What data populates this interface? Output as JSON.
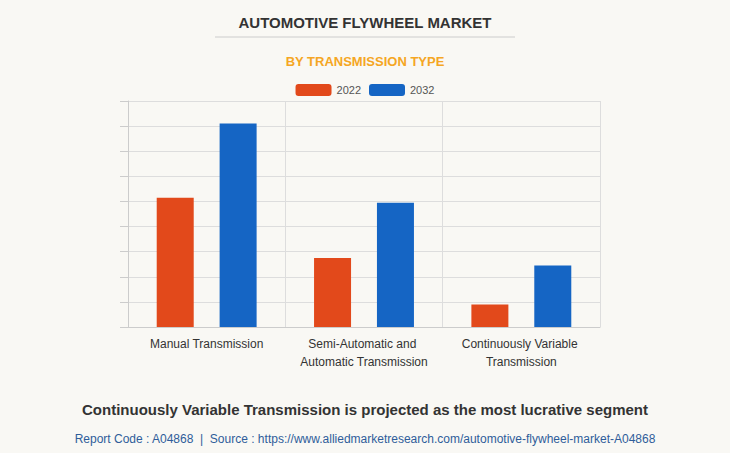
{
  "chart_data": {
    "type": "bar",
    "title": "AUTOMOTIVE FLYWHEEL MARKET",
    "subtitle": "BY TRANSMISSION TYPE",
    "annotations": [
      "Continuously Variable Transmission is projected as the most lucrative segment",
      "Report Code : A04868  |  Source : https://www.alliedmarketresearch.com/automotive-flywheel-market-A04868"
    ],
    "categories": [
      "Manual Transmission",
      "Semi-Automatic and Automatic Transmission",
      "Continuously Variable Transmission"
    ],
    "series": [
      {
        "name": "2022",
        "color": "#e2491b",
        "values": [
          5.15,
          2.75,
          0.9
        ]
      },
      {
        "name": "2032",
        "color": "#1565c4",
        "values": [
          8.1,
          4.95,
          2.45
        ]
      }
    ],
    "ylim": [
      0,
      9
    ],
    "yticks": [
      0,
      1,
      2,
      3,
      4,
      5,
      6,
      7,
      8,
      9
    ],
    "grid": true,
    "legend": "top",
    "tick_labels": "x"
  }
}
